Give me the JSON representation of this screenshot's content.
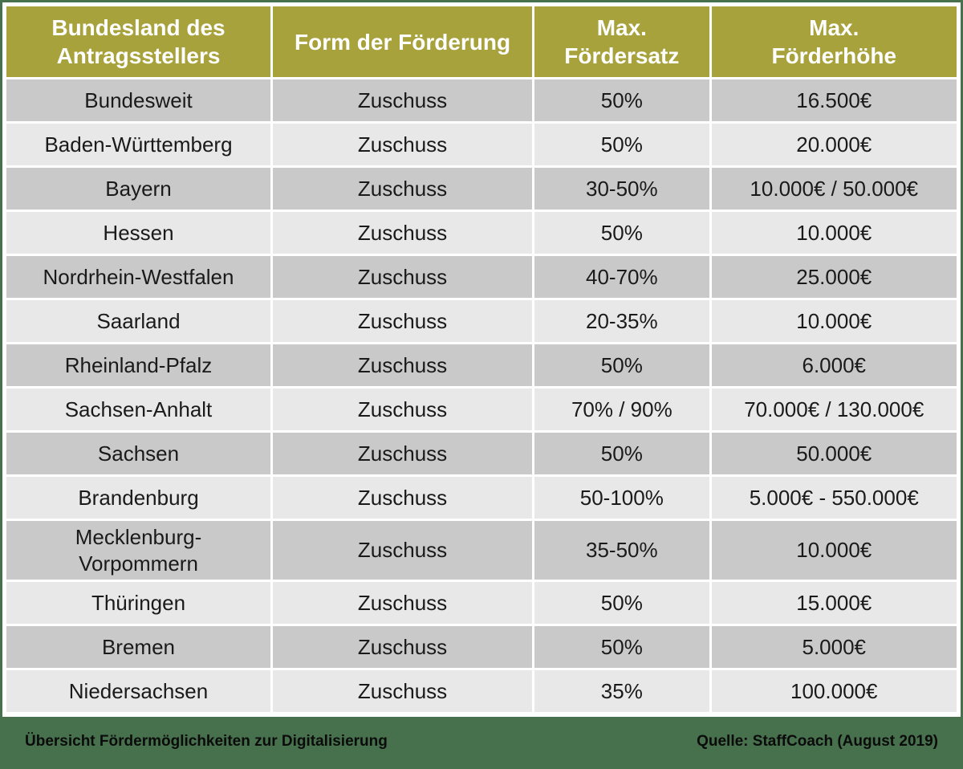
{
  "table": {
    "headers": [
      "Bundesland des\nAntragsstellers",
      "Form der Förderung",
      "Max.\nFördersatz",
      "Max.\nFörderhöhe"
    ],
    "rows": [
      [
        "Bundesweit",
        "Zuschuss",
        "50%",
        "16.500€"
      ],
      [
        "Baden-Württemberg",
        "Zuschuss",
        "50%",
        "20.000€"
      ],
      [
        "Bayern",
        "Zuschuss",
        "30-50%",
        "10.000€ / 50.000€"
      ],
      [
        "Hessen",
        "Zuschuss",
        "50%",
        "10.000€"
      ],
      [
        "Nordrhein-Westfalen",
        "Zuschuss",
        "40-70%",
        "25.000€"
      ],
      [
        "Saarland",
        "Zuschuss",
        "20-35%",
        "10.000€"
      ],
      [
        "Rheinland-Pfalz",
        "Zuschuss",
        "50%",
        "6.000€"
      ],
      [
        "Sachsen-Anhalt",
        "Zuschuss",
        "70% / 90%",
        "70.000€ / 130.000€"
      ],
      [
        "Sachsen",
        "Zuschuss",
        "50%",
        "50.000€"
      ],
      [
        "Brandenburg",
        "Zuschuss",
        "50-100%",
        "5.000€ - 550.000€"
      ],
      [
        "Mecklenburg-\nVorpommern",
        "Zuschuss",
        "35-50%",
        "10.000€"
      ],
      [
        "Thüringen",
        "Zuschuss",
        "50%",
        "15.000€"
      ],
      [
        "Bremen",
        "Zuschuss",
        "50%",
        "5.000€"
      ],
      [
        "Niedersachsen",
        "Zuschuss",
        "35%",
        "100.000€"
      ]
    ]
  },
  "footer": {
    "left": "Übersicht Fördermöglichkeiten zur Digitalisierung",
    "right": "Quelle: StaffCoach (August 2019)"
  },
  "colors": {
    "header_bg": "#a8a23c",
    "row_dark": "#c9c9c9",
    "row_light": "#e9e8e8",
    "footer_bg": "#47704d",
    "border_green": "#47704d",
    "header_text": "#ffffff",
    "cell_text": "#1a1a1a",
    "footer_text": "#0b0b0b"
  },
  "chart_data": {
    "type": "table",
    "title": "Übersicht Fördermöglichkeiten zur Digitalisierung",
    "source": "Quelle: StaffCoach (August 2019)",
    "columns": [
      "Bundesland des Antragsstellers",
      "Form der Förderung",
      "Max. Fördersatz",
      "Max. Förderhöhe"
    ],
    "rows": [
      [
        "Bundesweit",
        "Zuschuss",
        "50%",
        "16.500€"
      ],
      [
        "Baden-Württemberg",
        "Zuschuss",
        "50%",
        "20.000€"
      ],
      [
        "Bayern",
        "Zuschuss",
        "30-50%",
        "10.000€ / 50.000€"
      ],
      [
        "Hessen",
        "Zuschuss",
        "50%",
        "10.000€"
      ],
      [
        "Nordrhein-Westfalen",
        "Zuschuss",
        "40-70%",
        "25.000€"
      ],
      [
        "Saarland",
        "Zuschuss",
        "20-35%",
        "10.000€"
      ],
      [
        "Rheinland-Pfalz",
        "Zuschuss",
        "50%",
        "6.000€"
      ],
      [
        "Sachsen-Anhalt",
        "Zuschuss",
        "70% / 90%",
        "70.000€ / 130.000€"
      ],
      [
        "Sachsen",
        "Zuschuss",
        "50%",
        "50.000€"
      ],
      [
        "Brandenburg",
        "Zuschuss",
        "50-100%",
        "5.000€ - 550.000€"
      ],
      [
        "Mecklenburg-Vorpommern",
        "Zuschuss",
        "35-50%",
        "10.000€"
      ],
      [
        "Thüringen",
        "Zuschuss",
        "50%",
        "15.000€"
      ],
      [
        "Bremen",
        "Zuschuss",
        "50%",
        "5.000€"
      ],
      [
        "Niedersachsen",
        "Zuschuss",
        "35%",
        "100.000€"
      ]
    ],
    "layout_hints": {
      "header_style": "olive background, white bold text",
      "row_striping": "odd rows dark gray, even rows light gray",
      "footer": "dark green bar with title left and source right"
    }
  }
}
